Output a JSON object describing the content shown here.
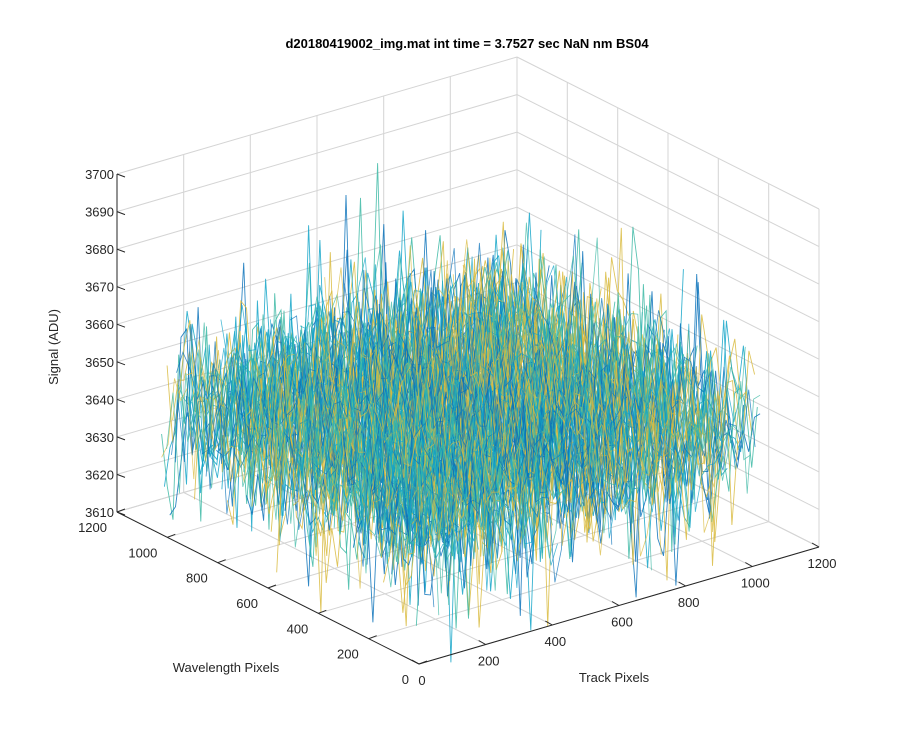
{
  "chart_data": {
    "type": "3d-surface-mesh",
    "title": "d20180419002_img.mat int time = 3.7527 sec  NaN nm BS04",
    "xlabel": "Track Pixels",
    "ylabel": "Wavelength Pixels",
    "zlabel": "Signal (ADU)",
    "xlim": [
      0,
      1200
    ],
    "ylim": [
      0,
      1200
    ],
    "zlim": [
      3610,
      3700
    ],
    "xticks": [
      0,
      200,
      400,
      600,
      800,
      1000,
      1200
    ],
    "yticks": [
      0,
      200,
      400,
      600,
      800,
      1000,
      1200
    ],
    "zticks": [
      3610,
      3620,
      3630,
      3640,
      3650,
      3660,
      3670,
      3680,
      3690,
      3700
    ],
    "data_extent": {
      "x": [
        1,
        1024
      ],
      "y": [
        1,
        1024
      ]
    },
    "signal_mean": 3645,
    "signal_range": [
      3605,
      3692
    ],
    "grid": true,
    "colormap_colors": [
      "#0a72ba",
      "#13a4c8",
      "#3cb8a4",
      "#d9bb40"
    ]
  }
}
